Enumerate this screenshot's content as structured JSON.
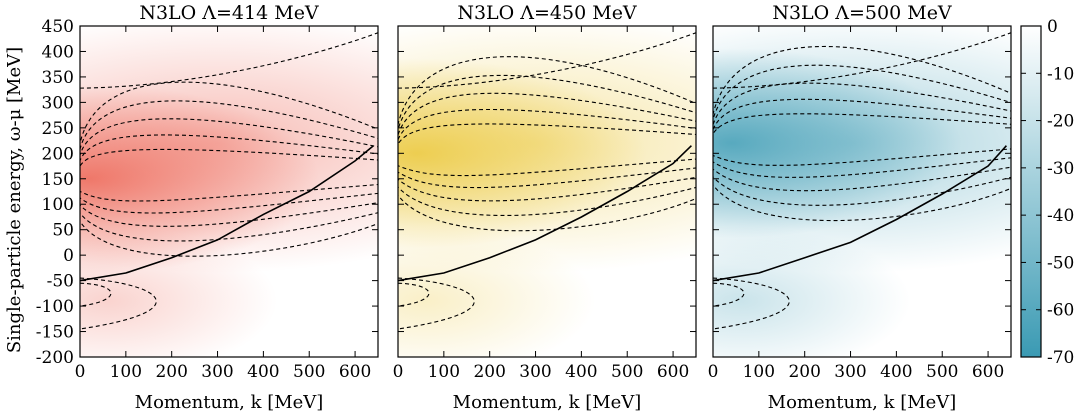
{
  "chart_data": {
    "type": "heatmap",
    "ylabel": "Single-particle energy, ω-μ [MeV]",
    "ylim": [
      -200,
      450
    ],
    "yticks": [
      "450",
      "400",
      "350",
      "300",
      "250",
      "200",
      "150",
      "100",
      "50",
      "0",
      "-50",
      "-100",
      "-150",
      "-200"
    ],
    "xlim": [
      0,
      650
    ],
    "xticks": [
      "0",
      "100",
      "200",
      "300",
      "400",
      "500",
      "600"
    ],
    "colorbar": {
      "range": [
        -70,
        0
      ],
      "ticks": [
        "0",
        "-10",
        "-20",
        "-30",
        "-40",
        "-50",
        "-60",
        "-70"
      ]
    },
    "panels": [
      {
        "title": "N3LO Λ=414 MeV",
        "xlabel": "Momentum, k [MeV]",
        "colormap": [
          "#ffffff",
          "#e8402c"
        ],
        "peak": {
          "k": 20,
          "w": 150,
          "value": -45
        },
        "quasiparticle_curve": {
          "k": [
            0,
            100,
            200,
            300,
            400,
            500,
            600,
            640
          ],
          "w": [
            -50,
            -35,
            -5,
            30,
            80,
            125,
            185,
            215
          ]
        }
      },
      {
        "title": "N3LO Λ=450 MeV",
        "xlabel": "Momentum, k [MeV]",
        "colormap": [
          "#ffffff",
          "#e8c020"
        ],
        "peak": {
          "k": 40,
          "w": 200,
          "value": -50
        },
        "quasiparticle_curve": {
          "k": [
            0,
            100,
            200,
            300,
            400,
            500,
            600,
            640
          ],
          "w": [
            -50,
            -35,
            -5,
            30,
            75,
            125,
            180,
            215
          ]
        }
      },
      {
        "title": "N3LO Λ=500 MeV",
        "xlabel": "Momentum, k [MeV]",
        "colormap": [
          "#ffffff",
          "#3a9ab3"
        ],
        "peak": {
          "k": 40,
          "w": 220,
          "value": -55
        },
        "quasiparticle_curve": {
          "k": [
            0,
            100,
            200,
            300,
            400,
            500,
            600,
            640
          ],
          "w": [
            -50,
            -35,
            -5,
            25,
            70,
            120,
            175,
            215
          ]
        }
      }
    ]
  }
}
